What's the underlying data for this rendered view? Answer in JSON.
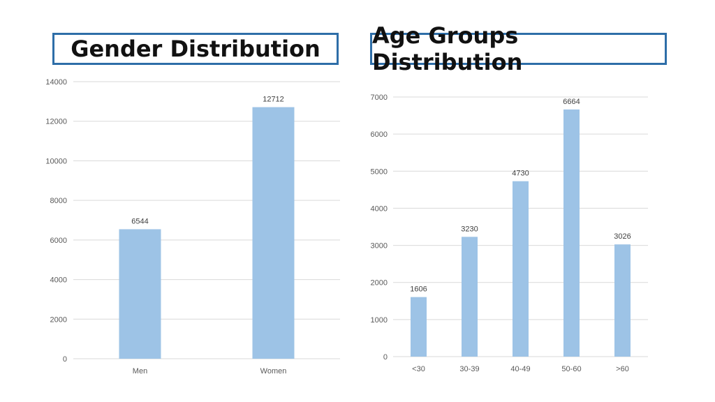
{
  "chart_data": [
    {
      "type": "bar",
      "title": "Gender Distribution",
      "categories": [
        "Men",
        "Women"
      ],
      "values": [
        6544,
        12712
      ],
      "ylim": [
        0,
        14000
      ],
      "yticks": [
        0,
        2000,
        4000,
        6000,
        8000,
        10000,
        12000,
        14000
      ],
      "grid": true,
      "color": "#9dc3e6"
    },
    {
      "type": "bar",
      "title": "Age Groups Distribution",
      "categories": [
        "<30",
        "30-39",
        "40-49",
        "50-60",
        ">60"
      ],
      "values": [
        1606,
        3230,
        4730,
        6664,
        3026
      ],
      "ylim": [
        0,
        7000
      ],
      "yticks": [
        0,
        1000,
        2000,
        3000,
        4000,
        5000,
        6000,
        7000
      ],
      "grid": true,
      "color": "#9dc3e6"
    }
  ]
}
